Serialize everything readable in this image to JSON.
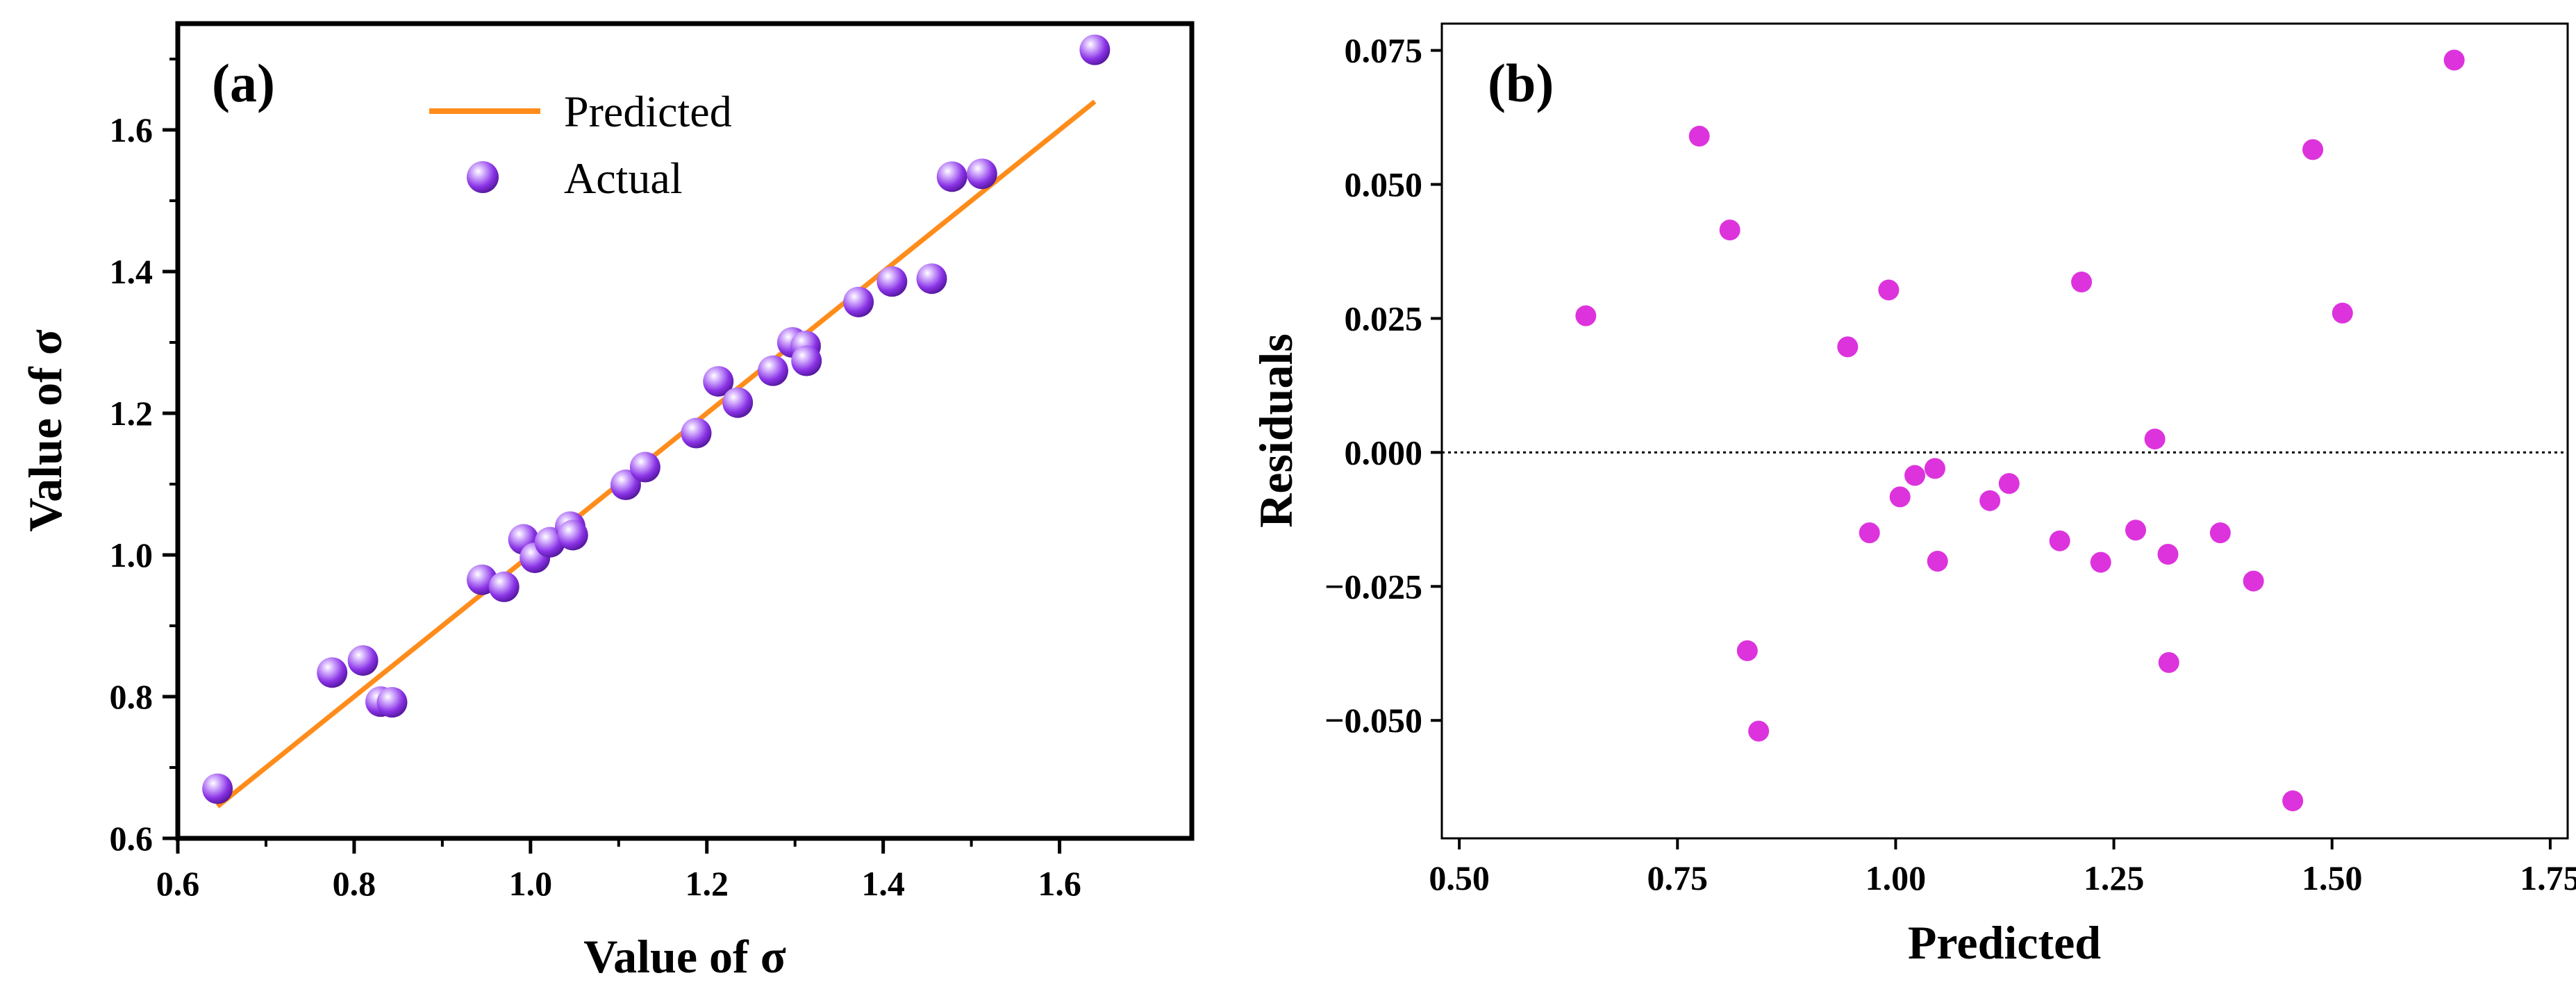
{
  "chart_data": [
    {
      "type": "scatter",
      "panel_label": "(a)",
      "xlabel": "Value of σ",
      "ylabel": "Value of σ",
      "xlim": [
        0.6,
        1.75
      ],
      "ylim": [
        0.6,
        1.75
      ],
      "xticks": [
        "0.6",
        "0.8",
        "1.0",
        "1.2",
        "1.4",
        "1.6"
      ],
      "yticks": [
        "0.6",
        "0.8",
        "1.0",
        "1.2",
        "1.4",
        "1.6"
      ],
      "legend": {
        "position": "top-center",
        "entries": [
          "Predicted",
          "Actual"
        ]
      },
      "colors": {
        "predicted": "#ff8c1a",
        "actual": "#8a33e6"
      },
      "series": [
        {
          "name": "Predicted",
          "kind": "line",
          "x": [
            0.645,
            1.64
          ],
          "y": [
            0.645,
            1.64
          ]
        },
        {
          "name": "Actual",
          "kind": "scatter",
          "x": [
            0.645,
            0.775,
            0.81,
            0.83,
            0.843,
            0.945,
            0.97,
            0.992,
            1.005,
            1.022,
            1.045,
            1.048,
            1.108,
            1.13,
            1.188,
            1.213,
            1.235,
            1.275,
            1.297,
            1.312,
            1.313,
            1.372,
            1.41,
            1.455,
            1.478,
            1.512,
            1.64
          ],
          "y": [
            0.67,
            0.834,
            0.851,
            0.793,
            0.792,
            0.965,
            0.955,
            1.022,
            0.996,
            1.018,
            1.04,
            1.028,
            1.099,
            1.124,
            1.172,
            1.245,
            1.215,
            1.26,
            1.3,
            1.295,
            1.274,
            1.357,
            1.386,
            1.39,
            1.534,
            1.538,
            1.713
          ]
        }
      ]
    },
    {
      "type": "scatter",
      "panel_label": "(b)",
      "xlabel": "Predicted",
      "ylabel": "Residuals",
      "xlim": [
        0.48,
        1.77
      ],
      "ylim": [
        -0.072,
        0.08
      ],
      "xticks": [
        "0.50",
        "0.75",
        "1.00",
        "1.25",
        "1.50",
        "1.75"
      ],
      "yticks": [
        "−0.050",
        "−0.025",
        "0.000",
        "0.025",
        "0.050",
        "0.075"
      ],
      "reference_line": 0,
      "colors": {
        "points": "#dd33dd"
      },
      "series": [
        {
          "name": "Residuals",
          "x": [
            0.645,
            0.775,
            0.81,
            0.83,
            0.843,
            0.945,
            0.97,
            0.992,
            1.005,
            1.022,
            1.045,
            1.048,
            1.108,
            1.13,
            1.188,
            1.213,
            1.235,
            1.275,
            1.297,
            1.312,
            1.313,
            1.372,
            1.41,
            1.455,
            1.478,
            1.512,
            1.64
          ],
          "y": [
            0.0255,
            0.059,
            0.0415,
            -0.037,
            -0.052,
            0.0197,
            -0.015,
            0.0303,
            -0.0083,
            -0.0043,
            -0.003,
            -0.0203,
            -0.009,
            -0.0058,
            -0.0165,
            0.0318,
            -0.0205,
            -0.0145,
            0.0025,
            -0.019,
            -0.0392,
            -0.015,
            -0.024,
            -0.065,
            0.0565,
            0.026,
            0.0732
          ]
        }
      ]
    }
  ]
}
